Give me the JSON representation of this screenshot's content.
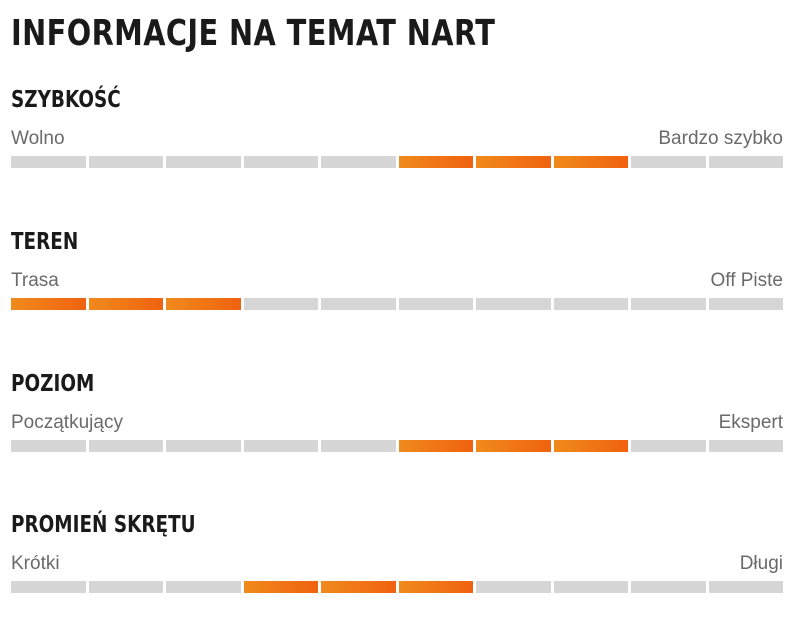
{
  "title": "INFORMACJE NA TEMAT NART",
  "colors": {
    "filled_start": "#f08a1c",
    "filled_end": "#f0620f",
    "empty": "#d6d6d6"
  },
  "sections": [
    {
      "title": "SZYBKOŚĆ",
      "min_label": "Wolno",
      "max_label": "Bardzo szybko",
      "segments": 10,
      "filled_from": 6,
      "filled_to": 8
    },
    {
      "title": "TEREN",
      "min_label": "Trasa",
      "max_label": "Off Piste",
      "segments": 10,
      "filled_from": 1,
      "filled_to": 3
    },
    {
      "title": "POZIOM",
      "min_label": "Początkujący",
      "max_label": "Ekspert",
      "segments": 10,
      "filled_from": 6,
      "filled_to": 8
    },
    {
      "title": "PROMIEŃ SKRĘTU",
      "min_label": "Krótki",
      "max_label": "Długi",
      "segments": 10,
      "filled_from": 4,
      "filled_to": 6
    }
  ]
}
